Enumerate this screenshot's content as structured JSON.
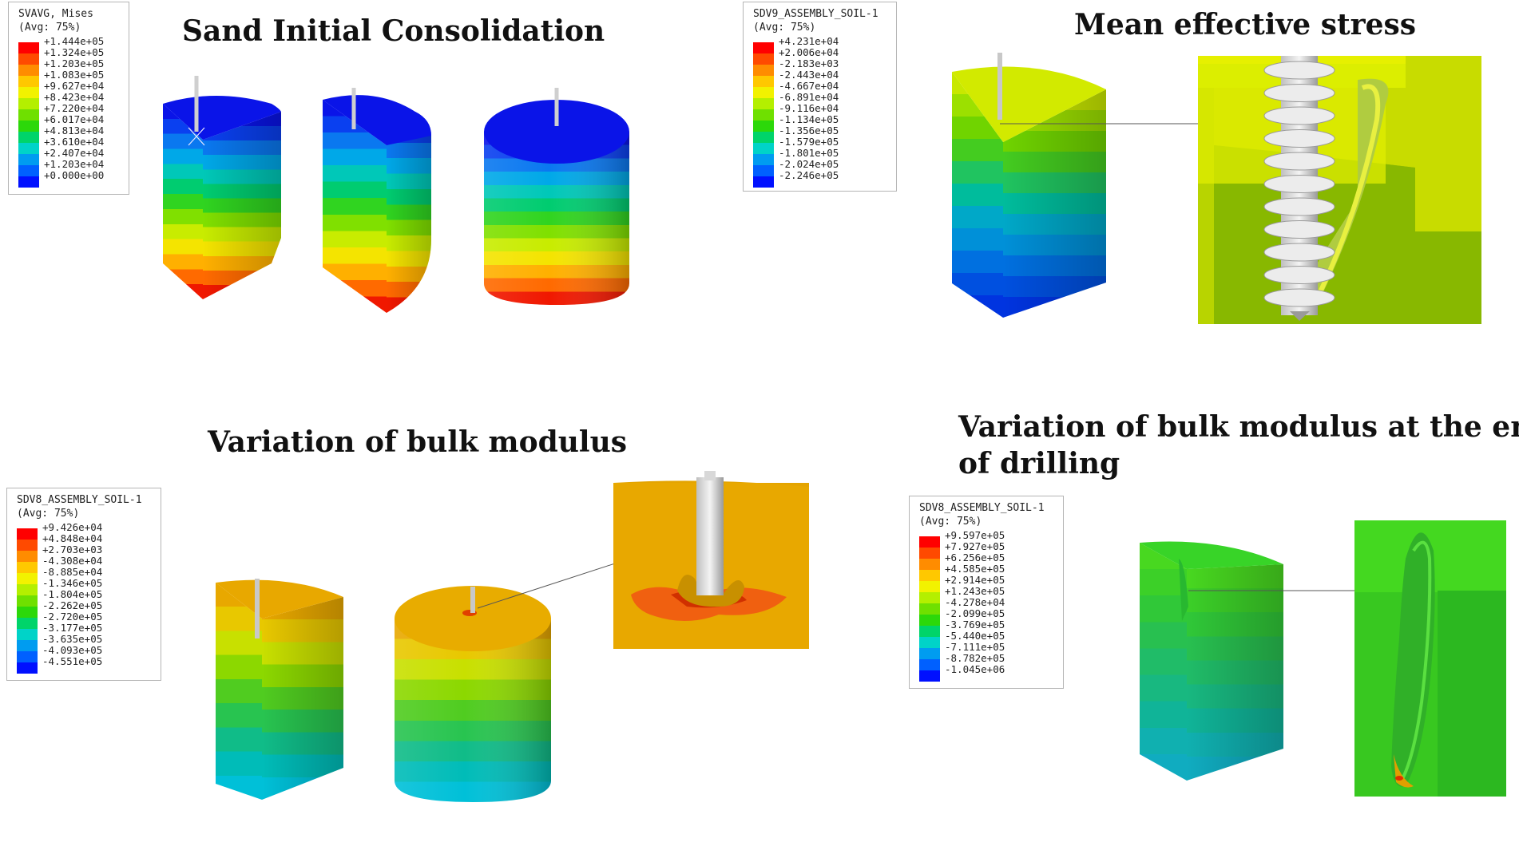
{
  "titles": {
    "consolidation": "Sand Initial Consolidation",
    "mean_stress": "Mean effective stress",
    "bulk_modulus": "Variation of bulk modulus",
    "bulk_modulus_end_line1": "Variation of bulk modulus at the end",
    "bulk_modulus_end_line2": "of drilling"
  },
  "legends": [
    {
      "id": "svavg",
      "line1": "SVAVG, Mises",
      "line2": "(Avg: 75%)",
      "colors": [
        "#ff0000",
        "#ff4a00",
        "#ff8c00",
        "#ffc800",
        "#f2f200",
        "#b4ef00",
        "#6fe000",
        "#2cd80a",
        "#00d46a",
        "#00d3c8",
        "#009cf0",
        "#0060ff",
        "#0010ff"
      ],
      "values": [
        "+1.444e+05",
        "+1.324e+05",
        "+1.203e+05",
        "+1.083e+05",
        "+9.627e+04",
        "+8.423e+04",
        "+7.220e+04",
        "+6.017e+04",
        "+4.813e+04",
        "+3.610e+04",
        "+2.407e+04",
        "+1.203e+04",
        "+0.000e+00"
      ]
    },
    {
      "id": "sdv9",
      "line1": "SDV9_ASSEMBLY_SOIL-1",
      "line2": "(Avg: 75%)",
      "colors": [
        "#ff0000",
        "#ff4a00",
        "#ff8c00",
        "#ffc800",
        "#f2f200",
        "#b4ef00",
        "#6fe000",
        "#2cd80a",
        "#00d46a",
        "#00d3c8",
        "#009cf0",
        "#0060ff",
        "#0010ff"
      ],
      "values": [
        "+4.231e+04",
        "+2.006e+04",
        "-2.183e+03",
        "-2.443e+04",
        "-4.667e+04",
        "-6.891e+04",
        "-9.116e+04",
        "-1.134e+05",
        "-1.356e+05",
        "-1.579e+05",
        "-1.801e+05",
        "-2.024e+05",
        "-2.246e+05"
      ]
    },
    {
      "id": "sdv8a",
      "line1": "SDV8_ASSEMBLY_SOIL-1",
      "line2": "(Avg: 75%)",
      "colors": [
        "#ff0000",
        "#ff4a00",
        "#ff8c00",
        "#ffc800",
        "#f2f200",
        "#b4ef00",
        "#6fe000",
        "#2cd80a",
        "#00d46a",
        "#00d3c8",
        "#009cf0",
        "#0060ff",
        "#0010ff"
      ],
      "values": [
        "+9.426e+04",
        "+4.848e+04",
        "+2.703e+03",
        "-4.308e+04",
        "-8.885e+04",
        "-1.346e+05",
        "-1.804e+05",
        "-2.262e+05",
        "-2.720e+05",
        "-3.177e+05",
        "-3.635e+05",
        "-4.093e+05",
        "-4.551e+05"
      ]
    },
    {
      "id": "sdv8b",
      "line1": "SDV8_ASSEMBLY_SOIL-1",
      "line2": "(Avg: 75%)",
      "colors": [
        "#ff0000",
        "#ff4a00",
        "#ff8c00",
        "#ffc800",
        "#f2f200",
        "#b4ef00",
        "#6fe000",
        "#2cd80a",
        "#00d46a",
        "#00d3c8",
        "#009cf0",
        "#0060ff",
        "#0010ff"
      ],
      "values": [
        "+9.597e+05",
        "+7.927e+05",
        "+6.256e+05",
        "+4.585e+05",
        "+2.914e+05",
        "+1.243e+05",
        "-4.278e+04",
        "-2.099e+05",
        "-3.769e+05",
        "-5.440e+05",
        "-7.111e+05",
        "-8.782e+05",
        "-1.045e+06"
      ]
    }
  ],
  "colors": {
    "cons_top_to_bottom": [
      "#0a14e8",
      "#0a40f0",
      "#0a78f0",
      "#00a8e8",
      "#00c8b8",
      "#00cc70",
      "#30d420",
      "#80e000",
      "#c8ec00",
      "#f4e400",
      "#ffb000",
      "#ff6a00",
      "#f01800"
    ],
    "mes_top_to_bottom": [
      "#c8e800",
      "#9ce000",
      "#70d400",
      "#44cc20",
      "#20c460",
      "#00bc9c",
      "#00a8c8",
      "#0090d8",
      "#0070e0",
      "#0050e0",
      "#0034e0"
    ],
    "bulk_top_to_bottom": [
      "#e8a800",
      "#e8c800",
      "#c8e000",
      "#8cd800",
      "#50cc20",
      "#28c450",
      "#10bc88",
      "#00bcb8",
      "#00c0d8"
    ],
    "bulk_end_top_to_bottom": [
      "#48d820",
      "#3cd028",
      "#30c838",
      "#28c050",
      "#20bc68",
      "#18b880",
      "#10b498",
      "#10b0b0",
      "#10acc0"
    ]
  }
}
